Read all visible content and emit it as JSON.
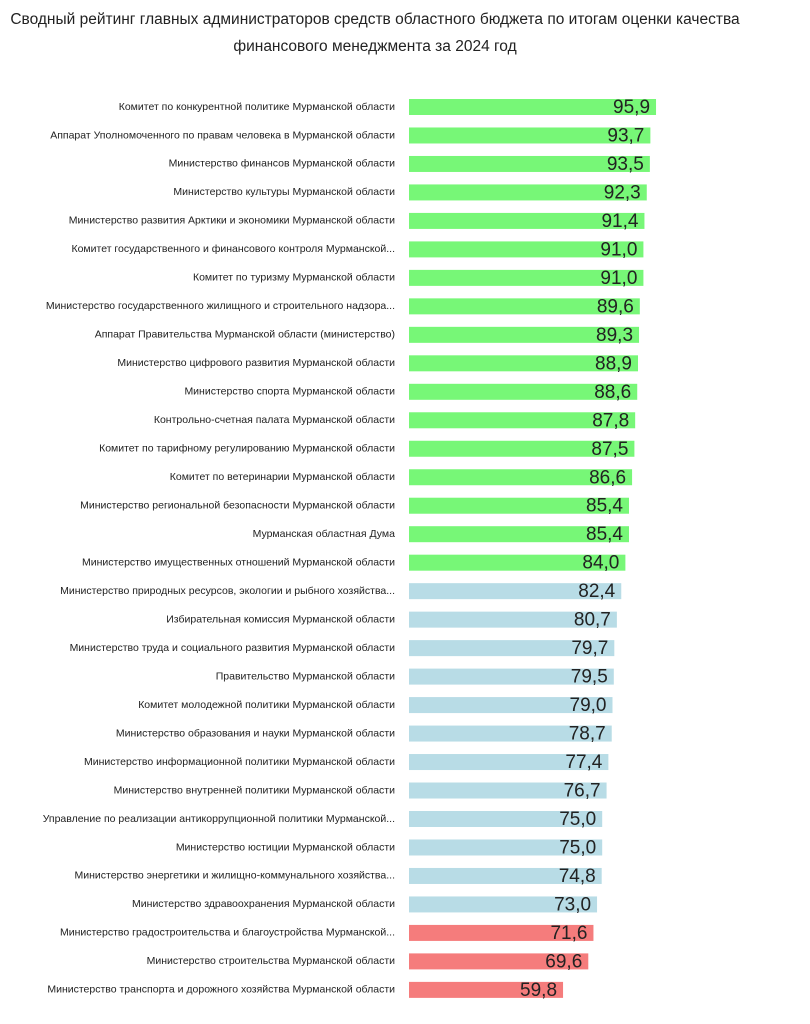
{
  "chart_data": {
    "type": "barh",
    "title": [
      "Сводный рейтинг главных администраторов средств областного бюджета по итогам оценки качества",
      "финансового менеджмента за 2024 год"
    ],
    "categories": [
      "Комитет по конкурентной политике Мурманской области",
      "Аппарат Уполномоченного  по правам человека в Мурманской области",
      "Министерство финансов Мурманской области",
      "Министерство культуры Мурманской области",
      "Министерство развития Арктики и экономики Мурманской области",
      "Комитет государственного и финансового контроля Мурманской...",
      "Комитет по туризму Мурманской области",
      "Министерство государственного жилищного и строительного надзора...",
      "Аппарат Правительства Мурманской области (министерство)",
      "Министерство цифрового развития Мурманской области",
      "Министерство спорта Мурманской области",
      "Контрольно-счетная палата Мурманской области",
      "Комитет по тарифному регулированию Мурманской области",
      "Комитет по ветеринарии Мурманской области",
      "Министерство региональной безопасности Мурманской области",
      "Мурманская областная Дума",
      "Министерство имущественных отношений Мурманской области",
      "Министерство природных ресурсов, экологии и рыбного хозяйства...",
      "Избирательная комиссия Мурманской области",
      "Министерство труда и социального развития Мурманской области",
      "Правительство Мурманской области",
      "Комитет молодежной политики Мурманской области",
      "Министерство образования и науки Мурманской области",
      "Министерство информационной политики Мурманской области",
      "Министерство внутренней политики Мурманской области",
      "Управление по реализации антикоррупционной политики Мурманской...",
      "Министерство юстиции Мурманской области",
      "Министерство энергетики и жилищно-коммунального хозяйства...",
      "Министерство здравоохранения Мурманской области",
      "Министерство градостроительства и благоустройства Мурманской...",
      "Министерство строительства Мурманской области",
      "Министерство транспорта и дорожного хозяйства Мурманской области"
    ],
    "values": [
      95.9,
      93.7,
      93.5,
      92.3,
      91.4,
      91.0,
      91.0,
      89.6,
      89.3,
      88.9,
      88.6,
      87.8,
      87.5,
      86.6,
      85.4,
      85.4,
      84.0,
      82.4,
      80.7,
      79.7,
      79.5,
      79.0,
      78.7,
      77.4,
      76.7,
      75.0,
      75.0,
      74.8,
      73.0,
      71.6,
      69.6,
      59.8
    ],
    "value_labels": [
      "95,9",
      "93,7",
      "93,5",
      "92,3",
      "91,4",
      "91,0",
      "91,0",
      "89,6",
      "89,3",
      "88,9",
      "88,6",
      "87,8",
      "87,5",
      "86,6",
      "85,4",
      "85,4",
      "84,0",
      "82,4",
      "80,7",
      "79,7",
      "79,5",
      "79,0",
      "78,7",
      "77,4",
      "76,7",
      "75,0",
      "75,0",
      "74,8",
      "73,0",
      "71,6",
      "69,6",
      "59,8"
    ],
    "colors": [
      "#77f777",
      "#77f777",
      "#77f777",
      "#77f777",
      "#77f777",
      "#77f777",
      "#77f777",
      "#77f777",
      "#77f777",
      "#77f777",
      "#77f777",
      "#77f777",
      "#77f777",
      "#77f777",
      "#77f777",
      "#77f777",
      "#77f777",
      "#b8dce6",
      "#b8dce6",
      "#b8dce6",
      "#b8dce6",
      "#b8dce6",
      "#b8dce6",
      "#b8dce6",
      "#b8dce6",
      "#b8dce6",
      "#b8dce6",
      "#b8dce6",
      "#b8dce6",
      "#f57c7c",
      "#f57c7c",
      "#f57c7c"
    ],
    "xlim": [
      0,
      100
    ]
  }
}
